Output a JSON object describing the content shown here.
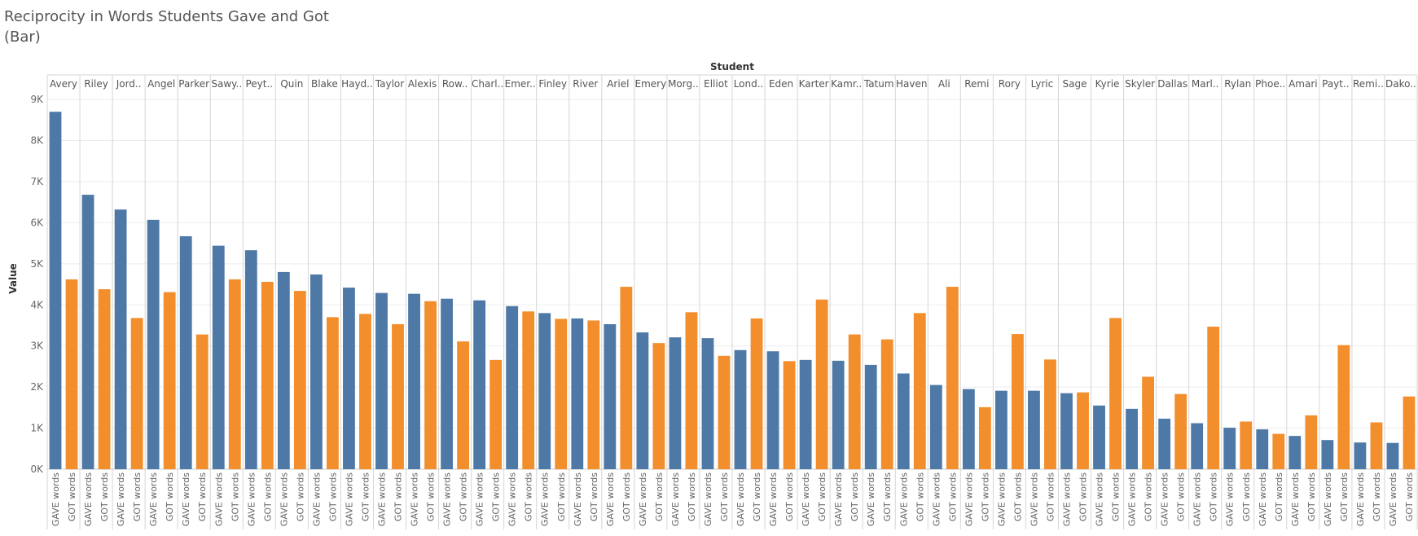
{
  "chart_data": {
    "type": "bar",
    "title": "Reciprocity in Words Students Gave and Got\n(Bar)",
    "column_header": "Student",
    "ylabel": "Value",
    "ylim": [
      0,
      9200
    ],
    "yticks": [
      0,
      1000,
      2000,
      3000,
      4000,
      5000,
      6000,
      7000,
      8000,
      9000
    ],
    "ytick_labels": [
      "0K",
      "1K",
      "2K",
      "3K",
      "4K",
      "5K",
      "6K",
      "7K",
      "8K",
      "9K"
    ],
    "measures": [
      "GAVE words",
      "GOT words"
    ],
    "colors": {
      "GAVE words": "#4e79a7",
      "GOT words": "#f28e2b"
    },
    "grid": true,
    "categories": [
      "Avery",
      "Riley",
      "Jord..",
      "Angel",
      "Parker",
      "Sawy..",
      "Peyt..",
      "Quin",
      "Blake",
      "Hayd..",
      "Taylor",
      "Alexis",
      "Row..",
      "Charl..",
      "Emer..",
      "Finley",
      "River",
      "Ariel",
      "Emery",
      "Morg..",
      "Elliot",
      "Lond..",
      "Eden",
      "Karter",
      "Kamr..",
      "Tatum",
      "Haven",
      "Ali",
      "Remi",
      "Rory",
      "Lyric",
      "Sage",
      "Kyrie",
      "Skyler",
      "Dallas",
      "Marl..",
      "Rylan",
      "Phoe..",
      "Amari",
      "Payt..",
      "Remi..",
      "Dako.."
    ],
    "series": [
      {
        "name": "GAVE words",
        "values": [
          8700,
          6680,
          6320,
          6070,
          5670,
          5440,
          5330,
          4800,
          4740,
          4420,
          4290,
          4270,
          4150,
          4110,
          3970,
          3800,
          3670,
          3530,
          3330,
          3210,
          3190,
          2900,
          2870,
          2660,
          2640,
          2540,
          2330,
          2050,
          1950,
          1910,
          1910,
          1850,
          1550,
          1470,
          1230,
          1120,
          1010,
          970,
          810,
          710,
          650,
          640
        ]
      },
      {
        "name": "GOT words",
        "values": [
          4620,
          4380,
          3680,
          4310,
          3280,
          4620,
          4560,
          4340,
          3700,
          3780,
          3530,
          4090,
          3110,
          2660,
          3840,
          3660,
          3620,
          4440,
          3070,
          3820,
          2760,
          3670,
          2630,
          4130,
          3280,
          3160,
          3800,
          4440,
          1510,
          3290,
          2670,
          1870,
          3680,
          2250,
          1830,
          3470,
          1160,
          860,
          1310,
          3020,
          1140,
          1770
        ]
      }
    ]
  }
}
